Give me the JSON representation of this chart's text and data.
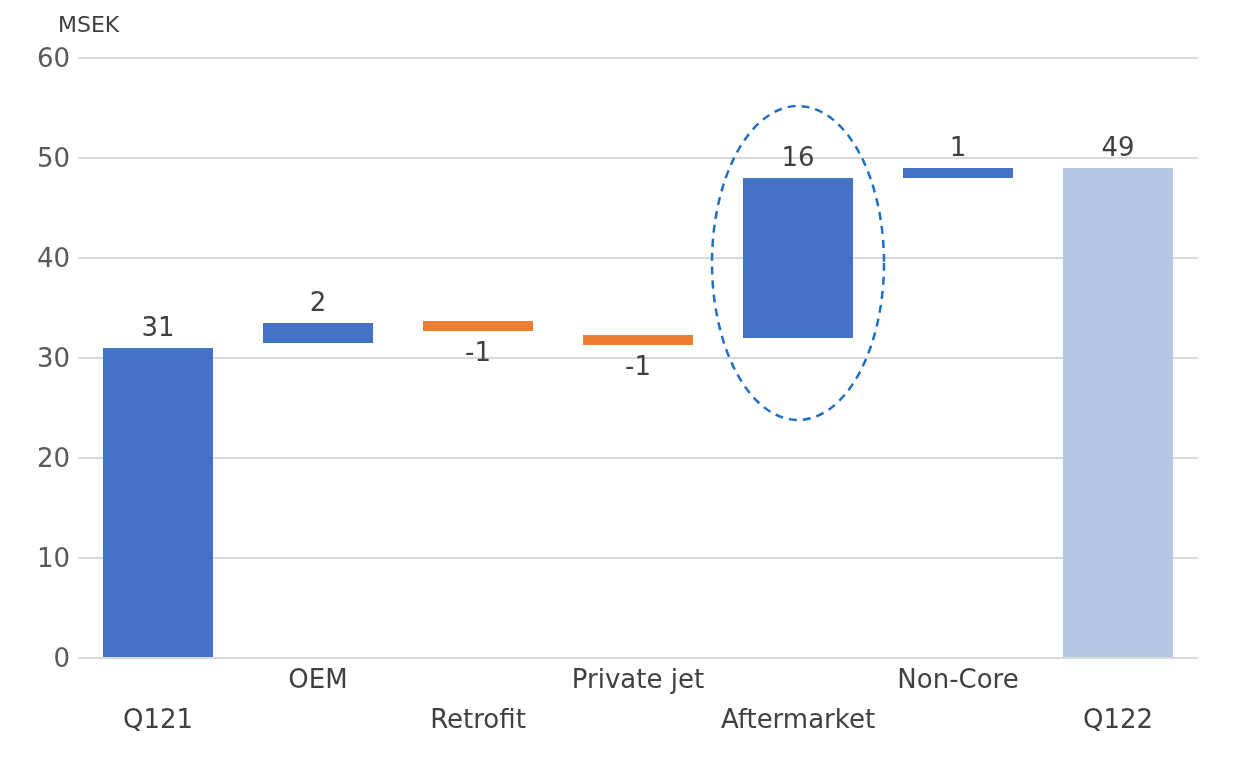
{
  "chart_data": {
    "type": "bar",
    "ylabel": "MSEK",
    "categories": [
      "Q121",
      "OEM",
      "Retrofit",
      "Private jet",
      "Aftermarket",
      "Non-Core",
      "Q122"
    ],
    "values": [
      31,
      2,
      -1,
      -1,
      16,
      1,
      49
    ],
    "base": [
      0,
      31.5,
      33.7,
      32.3,
      32,
      48,
      0
    ],
    "colors": [
      "#4472c4",
      "#4472c4",
      "#ed7d31",
      "#ed7d31",
      "#4472c4",
      "#4472c4",
      "#b4c7e7"
    ],
    "data_labels": true,
    "ylim": [
      0,
      60
    ],
    "yticks": [
      0,
      10,
      20,
      30,
      40,
      50,
      60
    ],
    "grid": "y"
  }
}
